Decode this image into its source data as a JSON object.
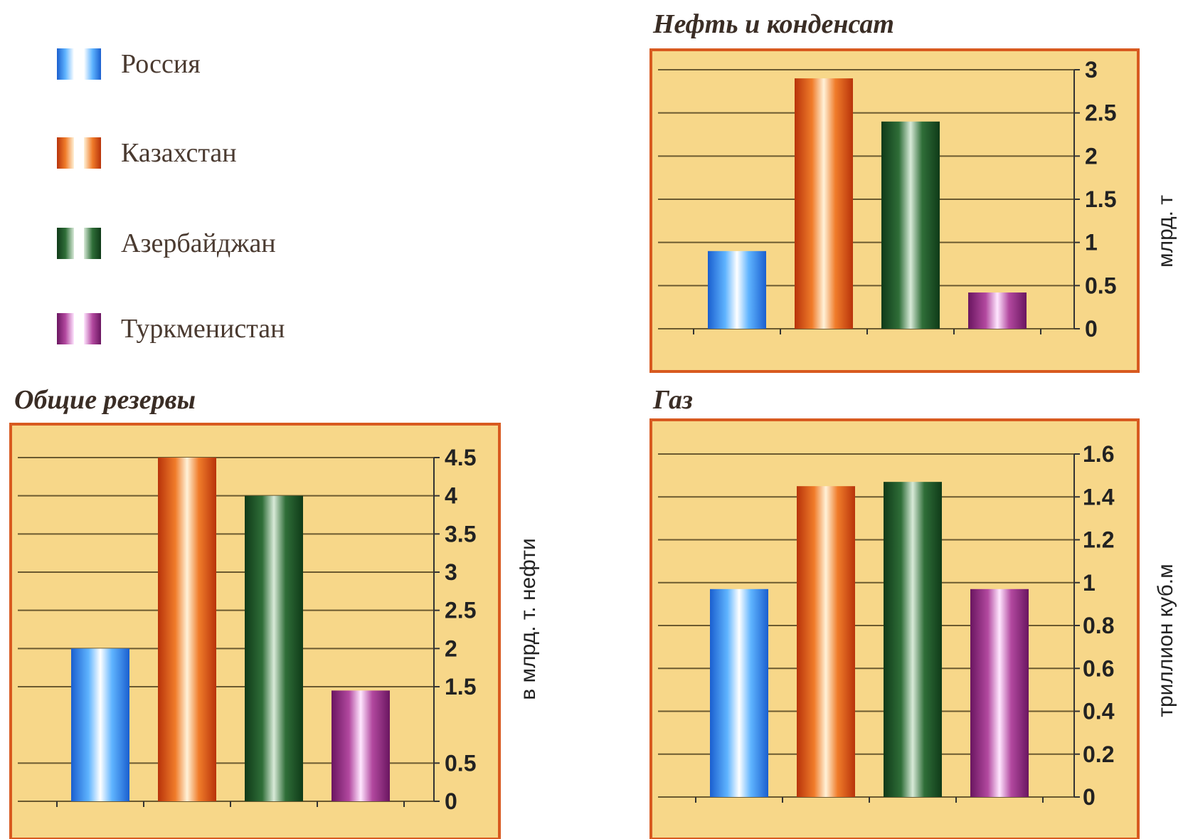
{
  "legend": {
    "items": [
      {
        "label": "Россия",
        "key": "russia"
      },
      {
        "label": "Казахстан",
        "key": "kazakhstan"
      },
      {
        "label": "Азербайджан",
        "key": "azerbaijan"
      },
      {
        "label": "Туркменистан",
        "key": "turkmenistan"
      }
    ]
  },
  "colors": {
    "russia": [
      "#1a5fcf",
      "#5fb4ff",
      "#ffffff"
    ],
    "kazakhstan": [
      "#b8330a",
      "#f07c2a",
      "#fff2d8"
    ],
    "azerbaijan": [
      "#0f3a18",
      "#2f6e38",
      "#d8ead8"
    ],
    "turkmenistan": [
      "#6a1660",
      "#b2489f",
      "#ffe6ff"
    ],
    "plot_bg": "#f7d789",
    "plot_border": "#d85a20",
    "grid": "#6b5a30"
  },
  "chart_data": [
    {
      "id": "oil",
      "type": "bar",
      "title": "Нефть и конденсат",
      "ylabel": "млрд. т",
      "categories": [
        "Россия",
        "Казахстан",
        "Азербайджан",
        "Туркменистан"
      ],
      "values": [
        0.9,
        2.9,
        2.4,
        0.42
      ],
      "ylim": [
        0,
        3
      ],
      "yticks": [
        0,
        0.5,
        1,
        1.5,
        2,
        2.5,
        3
      ],
      "ytick_labels": [
        "0",
        "0.5",
        "1",
        "1.5",
        "2",
        "2.5",
        "3"
      ],
      "grid": true,
      "y_axis_side": "right"
    },
    {
      "id": "total",
      "type": "bar",
      "title": "Общие резервы",
      "ylabel": "в млрд. т. нефти",
      "categories": [
        "Россия",
        "Казахстан",
        "Азербайджан",
        "Туркменистан"
      ],
      "values": [
        2.0,
        4.5,
        4.0,
        1.45
      ],
      "ylim": [
        0,
        4.5
      ],
      "yticks": [
        0,
        0.5,
        1.5,
        2,
        2.5,
        3,
        3.5,
        4,
        4.5
      ],
      "ytick_labels": [
        "0",
        "0.5",
        "1.5",
        "2",
        "2.5",
        "3",
        "3.5",
        "4",
        "4.5"
      ],
      "grid": true,
      "y_axis_side": "right"
    },
    {
      "id": "gas",
      "type": "bar",
      "title": "Газ",
      "ylabel": "триллион куб.м",
      "categories": [
        "Россия",
        "Казахстан",
        "Азербайджан",
        "Туркменистан"
      ],
      "values": [
        0.97,
        1.45,
        1.47,
        0.97
      ],
      "ylim": [
        0,
        1.6
      ],
      "yticks": [
        0,
        0.2,
        0.4,
        0.6,
        0.8,
        1,
        1.2,
        1.4,
        1.6
      ],
      "ytick_labels": [
        "0",
        "0.2",
        "0.4",
        "0.6",
        "0.8",
        "1",
        "1.2",
        "1.4",
        "1.6"
      ],
      "grid": true,
      "y_axis_side": "right"
    }
  ]
}
